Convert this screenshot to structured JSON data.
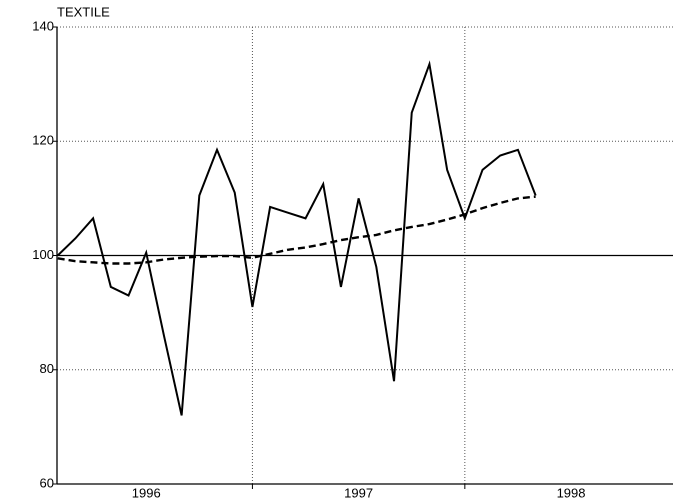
{
  "chart_data": {
    "type": "line",
    "ylabel": "TEXTILE",
    "x": [
      1996.0833,
      1996.1667,
      1996.25,
      1996.3333,
      1996.4167,
      1996.5,
      1996.5833,
      1996.6667,
      1996.75,
      1996.8333,
      1996.9167,
      1997.0,
      1997.0833,
      1997.1667,
      1997.25,
      1997.3333,
      1997.4167,
      1997.5,
      1997.5833,
      1997.6667,
      1997.75,
      1997.8333,
      1997.9167,
      1998.0,
      1998.0833,
      1998.1667,
      1998.25,
      1998.3333
    ],
    "series": [
      {
        "color": "#000000",
        "dash": "solid",
        "values": [
          100,
          103,
          106.5,
          94.5,
          93,
          100.5,
          86,
          72,
          110.5,
          118.5,
          111,
          91,
          108.5,
          107.5,
          106.5,
          112.5,
          94.5,
          110,
          98,
          78,
          125,
          133.5,
          115,
          106.5,
          115,
          117.5,
          118.5,
          110.5
        ]
      },
      {
        "color": "#000000",
        "dash": "dashed",
        "values": [
          99.5,
          99,
          98.8,
          98.6,
          98.6,
          98.8,
          99.3,
          99.6,
          99.8,
          99.9,
          99.9,
          99.6,
          100.3,
          101,
          101.4,
          102,
          102.7,
          103.2,
          103.6,
          104.4,
          105,
          105.5,
          106.3,
          107.2,
          108.3,
          109.2,
          110,
          110.3
        ]
      }
    ],
    "xlim": [
      1996.08,
      1998.98
    ],
    "xticks": [
      {
        "value": 1996.5,
        "label": "1996"
      },
      {
        "value": 1997.5,
        "label": "1997"
      },
      {
        "value": 1998.5,
        "label": "1998"
      }
    ],
    "xgrid": [
      1997,
      1998
    ],
    "ylim": [
      60,
      140
    ],
    "yticks": [
      60,
      80,
      100,
      120,
      140
    ],
    "reference_line": 100,
    "grid": true
  }
}
